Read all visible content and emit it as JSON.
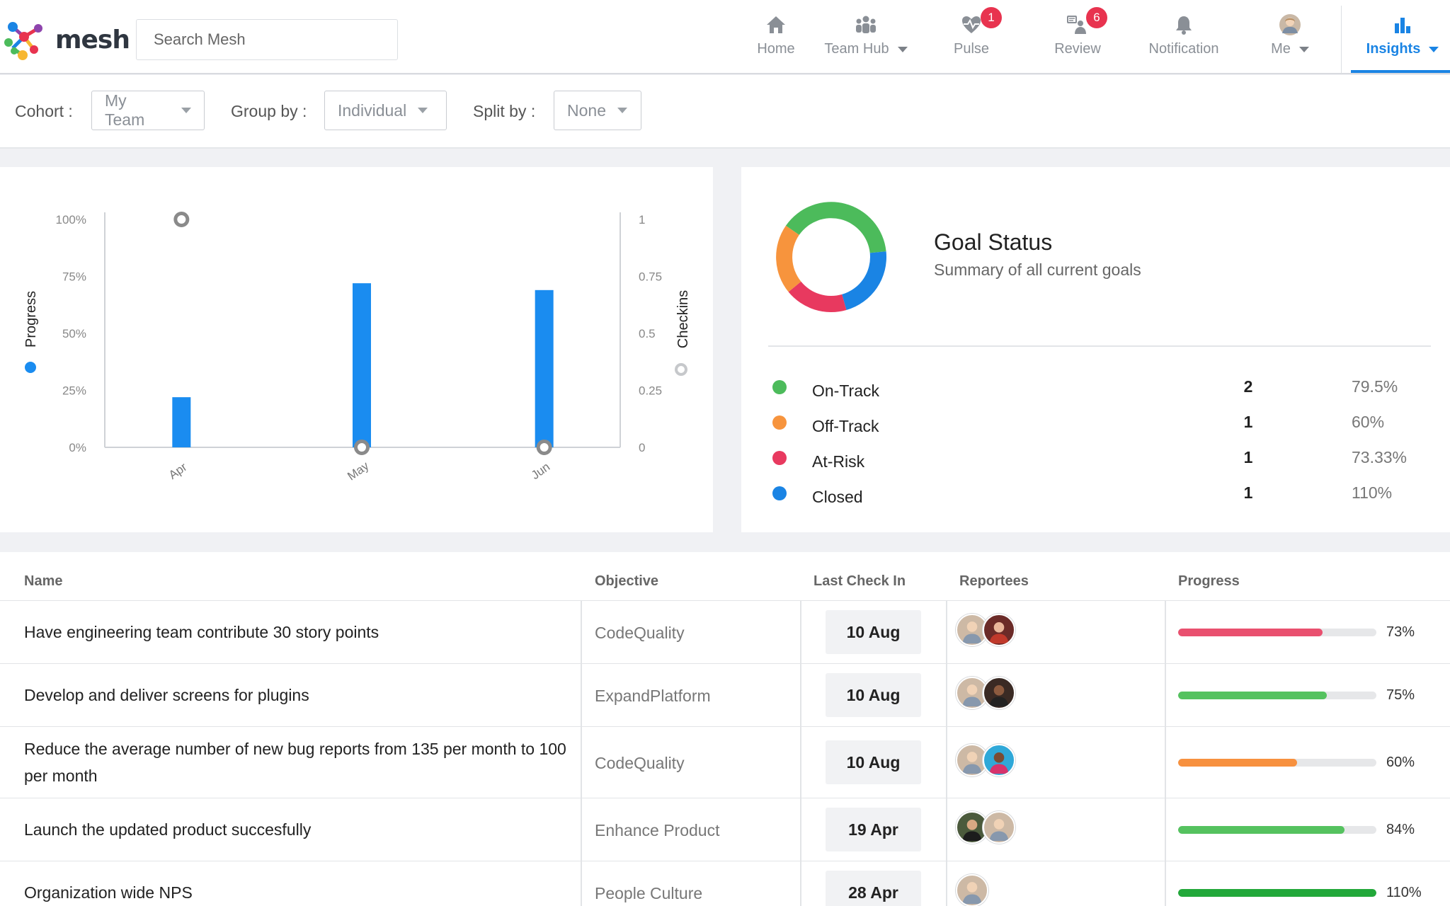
{
  "app": {
    "logo_text": "mesh"
  },
  "search": {
    "placeholder": "Search Mesh"
  },
  "nav": [
    {
      "label": "Home",
      "icon": "home-icon"
    },
    {
      "label": "Team Hub",
      "icon": "team-icon",
      "dropdown": true
    },
    {
      "label": "Pulse",
      "icon": "pulse-icon",
      "badge": "1"
    },
    {
      "label": "Review",
      "icon": "review-icon",
      "badge": "6"
    },
    {
      "label": "Notification",
      "icon": "bell-icon"
    },
    {
      "label": "Me",
      "icon": "avatar",
      "dropdown": true
    },
    {
      "label": "Insights",
      "icon": "insights-icon",
      "dropdown": true,
      "active": true
    }
  ],
  "filters": {
    "cohort": {
      "label": "Cohort :",
      "value": "My Team"
    },
    "group_by": {
      "label": "Group by :",
      "value": "Individual"
    },
    "split_by": {
      "label": "Split by :",
      "value": "None"
    }
  },
  "chart_data": {
    "type": "bar",
    "categories": [
      "Apr",
      "May",
      "Jun"
    ],
    "series": [
      {
        "name": "Progress",
        "axis": "left",
        "kind": "bar",
        "values": [
          22,
          72,
          69
        ],
        "color": "#1a8cf0"
      },
      {
        "name": "Checkins",
        "axis": "right",
        "kind": "scatter",
        "values": [
          1,
          0,
          0
        ],
        "color": "#8a8a8a"
      }
    ],
    "ylabel": "Progress",
    "y2label": "Checkins",
    "y_ticks": [
      "100%",
      "75%",
      "50%",
      "25%",
      "0%"
    ],
    "y2_ticks": [
      "1",
      "0.75",
      "0.5",
      "0.25",
      "0"
    ],
    "ylim": [
      0,
      100
    ],
    "y2lim": [
      0,
      1
    ]
  },
  "goal_status": {
    "title": "Goal Status",
    "subtitle": "Summary of all current goals",
    "items": [
      {
        "name": "On-Track",
        "count": "2",
        "pct": "79.5%",
        "color": "#4cbb5b"
      },
      {
        "name": "Off-Track",
        "count": "1",
        "pct": "60%",
        "color": "#f7943d"
      },
      {
        "name": "At-Risk",
        "count": "1",
        "pct": "73.33%",
        "color": "#e8395f"
      },
      {
        "name": "Closed",
        "count": "1",
        "pct": "110%",
        "color": "#1a84e4"
      }
    ]
  },
  "table": {
    "headers": {
      "name": "Name",
      "objective": "Objective",
      "last_check_in": "Last Check In",
      "reportees": "Reportees",
      "progress": "Progress"
    },
    "rows": [
      {
        "name": "Have engineering team contribute 30 story points",
        "objective": "CodeQuality",
        "last_check_in": "10 Aug",
        "progress_label": "73%",
        "progress": 0.73,
        "bar_color": "#e9506f"
      },
      {
        "name": "Develop and deliver screens for plugins",
        "objective": "ExpandPlatform",
        "last_check_in": "10 Aug",
        "progress_label": "75%",
        "progress": 0.75,
        "bar_color": "#55c25f"
      },
      {
        "name": "Reduce the average number of new bug reports from 135 per month to 100 per month",
        "objective": "CodeQuality",
        "last_check_in": "10 Aug",
        "progress_label": "60%",
        "progress": 0.6,
        "bar_color": "#f7913f"
      },
      {
        "name": "Launch the updated product succesfully",
        "objective": "Enhance Product",
        "last_check_in": "19 Apr",
        "progress_label": "84%",
        "progress": 0.84,
        "bar_color": "#55c25f"
      },
      {
        "name": "Organization wide NPS",
        "objective": "People Culture",
        "last_check_in": "28 Apr",
        "progress_label": "110%",
        "progress": 1.0,
        "bar_color": "#22a83a"
      }
    ]
  }
}
